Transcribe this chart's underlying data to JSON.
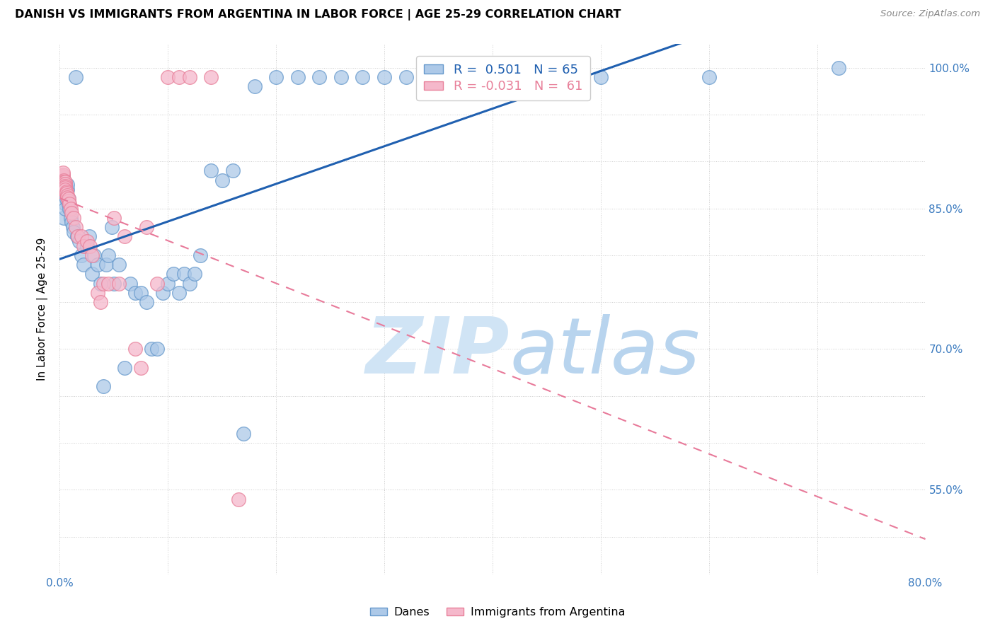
{
  "title": "DANISH VS IMMIGRANTS FROM ARGENTINA IN LABOR FORCE | AGE 25-29 CORRELATION CHART",
  "source": "Source: ZipAtlas.com",
  "ylabel": "In Labor Force | Age 25-29",
  "x_min": 0.0,
  "x_max": 0.8,
  "y_min": 0.46,
  "y_max": 1.025,
  "y_ticks": [
    0.5,
    0.55,
    0.6,
    0.65,
    0.7,
    0.75,
    0.8,
    0.85,
    0.9,
    0.95,
    1.0
  ],
  "y_tick_labels_right": [
    "",
    "55.0%",
    "",
    "",
    "70.0%",
    "",
    "",
    "85.0%",
    "",
    "",
    "100.0%"
  ],
  "x_ticks": [
    0.0,
    0.1,
    0.2,
    0.3,
    0.4,
    0.5,
    0.6,
    0.7,
    0.8
  ],
  "legend_label_danes": "Danes",
  "legend_label_immigrants": "Immigrants from Argentina",
  "danes_color": "#adc9e8",
  "immigrants_color": "#f5b8cb",
  "danes_edge_color": "#6699cc",
  "immigrants_edge_color": "#e8809a",
  "danes_R": 0.501,
  "danes_N": 65,
  "immigrants_R": -0.031,
  "immigrants_N": 61,
  "danes_line_color": "#2060b0",
  "immigrants_line_color": "#e87a9a",
  "danes_x": [
    0.004,
    0.005,
    0.005,
    0.006,
    0.006,
    0.007,
    0.007,
    0.008,
    0.008,
    0.009,
    0.01,
    0.011,
    0.012,
    0.013,
    0.015,
    0.016,
    0.018,
    0.02,
    0.022,
    0.025,
    0.027,
    0.03,
    0.032,
    0.035,
    0.038,
    0.04,
    0.043,
    0.045,
    0.048,
    0.05,
    0.055,
    0.06,
    0.065,
    0.07,
    0.075,
    0.08,
    0.085,
    0.09,
    0.095,
    0.1,
    0.105,
    0.11,
    0.115,
    0.12,
    0.125,
    0.13,
    0.14,
    0.15,
    0.16,
    0.17,
    0.18,
    0.2,
    0.22,
    0.24,
    0.26,
    0.28,
    0.3,
    0.32,
    0.34,
    0.36,
    0.4,
    0.45,
    0.5,
    0.6,
    0.72
  ],
  "danes_y": [
    0.84,
    0.855,
    0.85,
    0.86,
    0.865,
    0.87,
    0.875,
    0.86,
    0.855,
    0.85,
    0.84,
    0.835,
    0.83,
    0.825,
    0.99,
    0.82,
    0.815,
    0.8,
    0.79,
    0.81,
    0.82,
    0.78,
    0.8,
    0.79,
    0.77,
    0.66,
    0.79,
    0.8,
    0.83,
    0.77,
    0.79,
    0.68,
    0.77,
    0.76,
    0.76,
    0.75,
    0.7,
    0.7,
    0.76,
    0.77,
    0.78,
    0.76,
    0.78,
    0.77,
    0.78,
    0.8,
    0.89,
    0.88,
    0.89,
    0.61,
    0.98,
    0.99,
    0.99,
    0.99,
    0.99,
    0.99,
    0.99,
    0.99,
    0.99,
    0.99,
    0.99,
    0.99,
    0.99,
    0.99,
    1.0
  ],
  "immigrants_x": [
    0.002,
    0.002,
    0.002,
    0.002,
    0.002,
    0.002,
    0.002,
    0.003,
    0.003,
    0.003,
    0.003,
    0.003,
    0.003,
    0.003,
    0.003,
    0.003,
    0.003,
    0.004,
    0.004,
    0.004,
    0.004,
    0.004,
    0.004,
    0.005,
    0.005,
    0.005,
    0.005,
    0.005,
    0.006,
    0.006,
    0.007,
    0.007,
    0.008,
    0.008,
    0.009,
    0.01,
    0.011,
    0.013,
    0.015,
    0.017,
    0.02,
    0.022,
    0.025,
    0.028,
    0.03,
    0.035,
    0.038,
    0.04,
    0.045,
    0.05,
    0.055,
    0.06,
    0.07,
    0.075,
    0.08,
    0.09,
    0.1,
    0.11,
    0.12,
    0.14,
    0.165
  ],
  "immigrants_y": [
    0.88,
    0.882,
    0.884,
    0.878,
    0.876,
    0.874,
    0.872,
    0.88,
    0.882,
    0.884,
    0.886,
    0.888,
    0.878,
    0.876,
    0.874,
    0.872,
    0.87,
    0.88,
    0.878,
    0.876,
    0.874,
    0.872,
    0.87,
    0.878,
    0.876,
    0.874,
    0.872,
    0.87,
    0.868,
    0.866,
    0.864,
    0.862,
    0.858,
    0.86,
    0.855,
    0.85,
    0.845,
    0.84,
    0.83,
    0.82,
    0.82,
    0.81,
    0.815,
    0.81,
    0.8,
    0.76,
    0.75,
    0.77,
    0.77,
    0.84,
    0.77,
    0.82,
    0.7,
    0.68,
    0.83,
    0.77,
    0.99,
    0.99,
    0.99,
    0.99,
    0.54
  ],
  "watermark_zip": "ZIP",
  "watermark_atlas": "atlas",
  "watermark_color": "#d0e4f5"
}
